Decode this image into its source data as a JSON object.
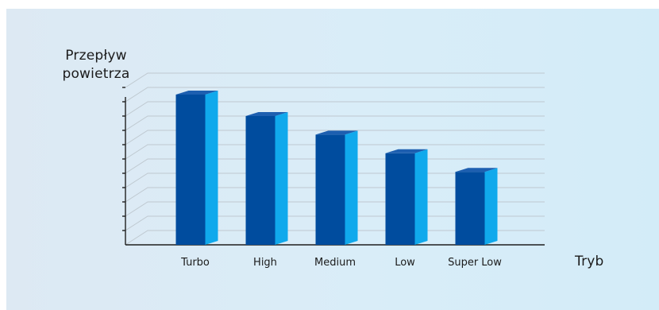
{
  "chart_data": {
    "type": "bar",
    "categories": [
      "Turbo",
      "High",
      "Medium",
      "Low",
      "Super Low"
    ],
    "values": [
      10.5,
      9.0,
      7.7,
      6.4,
      5.1
    ],
    "xlabel": "Tryb",
    "ylabel": "Przepływ\npowietrza",
    "ylim": [
      0,
      11
    ],
    "grid": true,
    "style": "3d-bar",
    "colors": {
      "bar_front": "#004c9e",
      "bar_side": "#10a9ec",
      "bar_top": "#1d5fb0",
      "grid": "#bfc8d0",
      "axis": "#1f1f1f"
    }
  }
}
